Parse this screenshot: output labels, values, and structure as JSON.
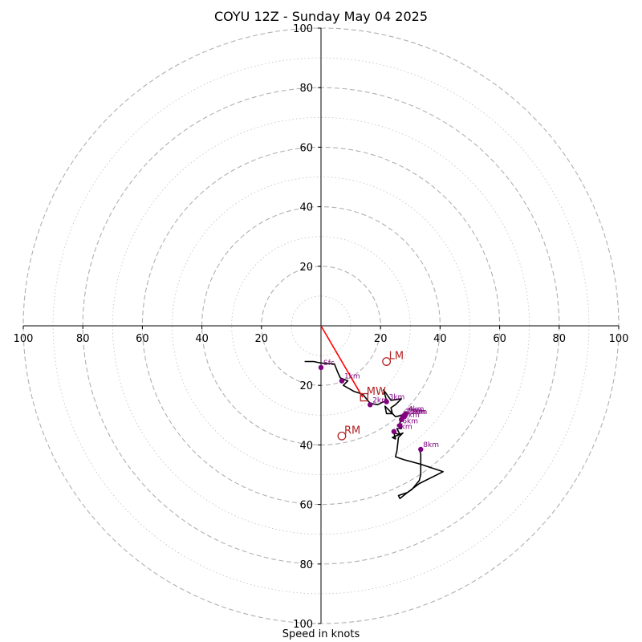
{
  "chart_data": {
    "type": "hodograph",
    "title": "COYU 12Z - Sunday May 04 2025",
    "xlabel": "Speed in knots",
    "ylabel": "",
    "units": "knots",
    "xlim": [
      -100,
      100
    ],
    "ylim": [
      -100,
      100
    ],
    "grid": true,
    "major_rings": [
      20,
      40,
      60,
      80,
      100
    ],
    "minor_rings": [
      10,
      30,
      50,
      70,
      90
    ],
    "axis_tick_labels": [
      "20",
      "40",
      "60",
      "80",
      "100"
    ],
    "colors": {
      "profile": "#000000",
      "height_marker": "#800080",
      "motion_marker": "#b22222",
      "shear_line": "#ff0000",
      "grid": "#b0b0b0"
    },
    "series": [
      {
        "role": "wind-profile",
        "points": [
          [
            -5.5,
            -12
          ],
          [
            -2.5,
            -12
          ],
          [
            0,
            -12.5
          ],
          [
            4.5,
            -12.8
          ],
          [
            5.8,
            -16
          ],
          [
            6.5,
            -17.5
          ],
          [
            9,
            -18.5
          ],
          [
            7.5,
            -20
          ],
          [
            11,
            -22
          ],
          [
            14,
            -23
          ],
          [
            16.5,
            -26
          ],
          [
            19,
            -26.5
          ],
          [
            22,
            -25
          ],
          [
            21,
            -21.5
          ],
          [
            23.5,
            -25
          ],
          [
            27,
            -24.5
          ],
          [
            25,
            -26.5
          ],
          [
            23.5,
            -27.5
          ],
          [
            24,
            -29.5
          ],
          [
            22,
            -29.5
          ],
          [
            21.5,
            -27
          ],
          [
            25,
            -30.5
          ],
          [
            27.5,
            -30
          ],
          [
            28,
            -31
          ],
          [
            26.5,
            -32.5
          ],
          [
            27,
            -34.5
          ],
          [
            25.5,
            -34.5
          ],
          [
            26.5,
            -36.5
          ],
          [
            24.5,
            -36
          ],
          [
            25,
            -38
          ],
          [
            24,
            -37.5
          ],
          [
            27.5,
            -36
          ],
          [
            26,
            -37.5
          ],
          [
            25.5,
            -42
          ],
          [
            25,
            -44
          ],
          [
            28,
            -45
          ],
          [
            33.5,
            -46.5
          ],
          [
            41,
            -49
          ],
          [
            33,
            -53
          ],
          [
            29,
            -56
          ],
          [
            26,
            -57
          ],
          [
            26.5,
            -58
          ],
          [
            29,
            -56
          ],
          [
            30.5,
            -55
          ],
          [
            33,
            -52
          ],
          [
            33.5,
            -50
          ],
          [
            33.5,
            -43
          ],
          [
            33,
            -41.5
          ]
        ]
      },
      {
        "role": "height-markers",
        "points": [
          {
            "label": "Sfc",
            "u": 0,
            "v": -14
          },
          {
            "label": "1km",
            "u": 7,
            "v": -18.5
          },
          {
            "label": "2km",
            "u": 16.5,
            "v": -26.5
          },
          {
            "label": "3km",
            "u": 22,
            "v": -25.5
          },
          {
            "label": "4km",
            "u": 28.5,
            "v": -29.5
          },
          {
            "label": "5km",
            "u": 27,
            "v": -31.5
          },
          {
            "label": "6km",
            "u": 26.5,
            "v": -33.5
          },
          {
            "label": "7km",
            "u": 28,
            "v": -30
          },
          {
            "label": "8km",
            "u": 33.5,
            "v": -41.5
          },
          {
            "label": "9km",
            "u": 24.5,
            "v": -35.5
          },
          {
            "label": "10km",
            "u": 27.5,
            "v": -30.5
          },
          {
            "label": "12km",
            "u": 28,
            "v": -30.5
          }
        ]
      },
      {
        "role": "storm-motion",
        "points": [
          {
            "label": "LM",
            "u": 22,
            "v": -12,
            "marker": "circle"
          },
          {
            "label": "MW",
            "u": 14.5,
            "v": -24,
            "marker": "square"
          },
          {
            "label": "RM",
            "u": 7,
            "v": -37,
            "marker": "circle"
          }
        ]
      },
      {
        "role": "shear-vector",
        "points": [
          [
            0,
            0
          ],
          [
            14,
            -24
          ]
        ]
      }
    ]
  }
}
